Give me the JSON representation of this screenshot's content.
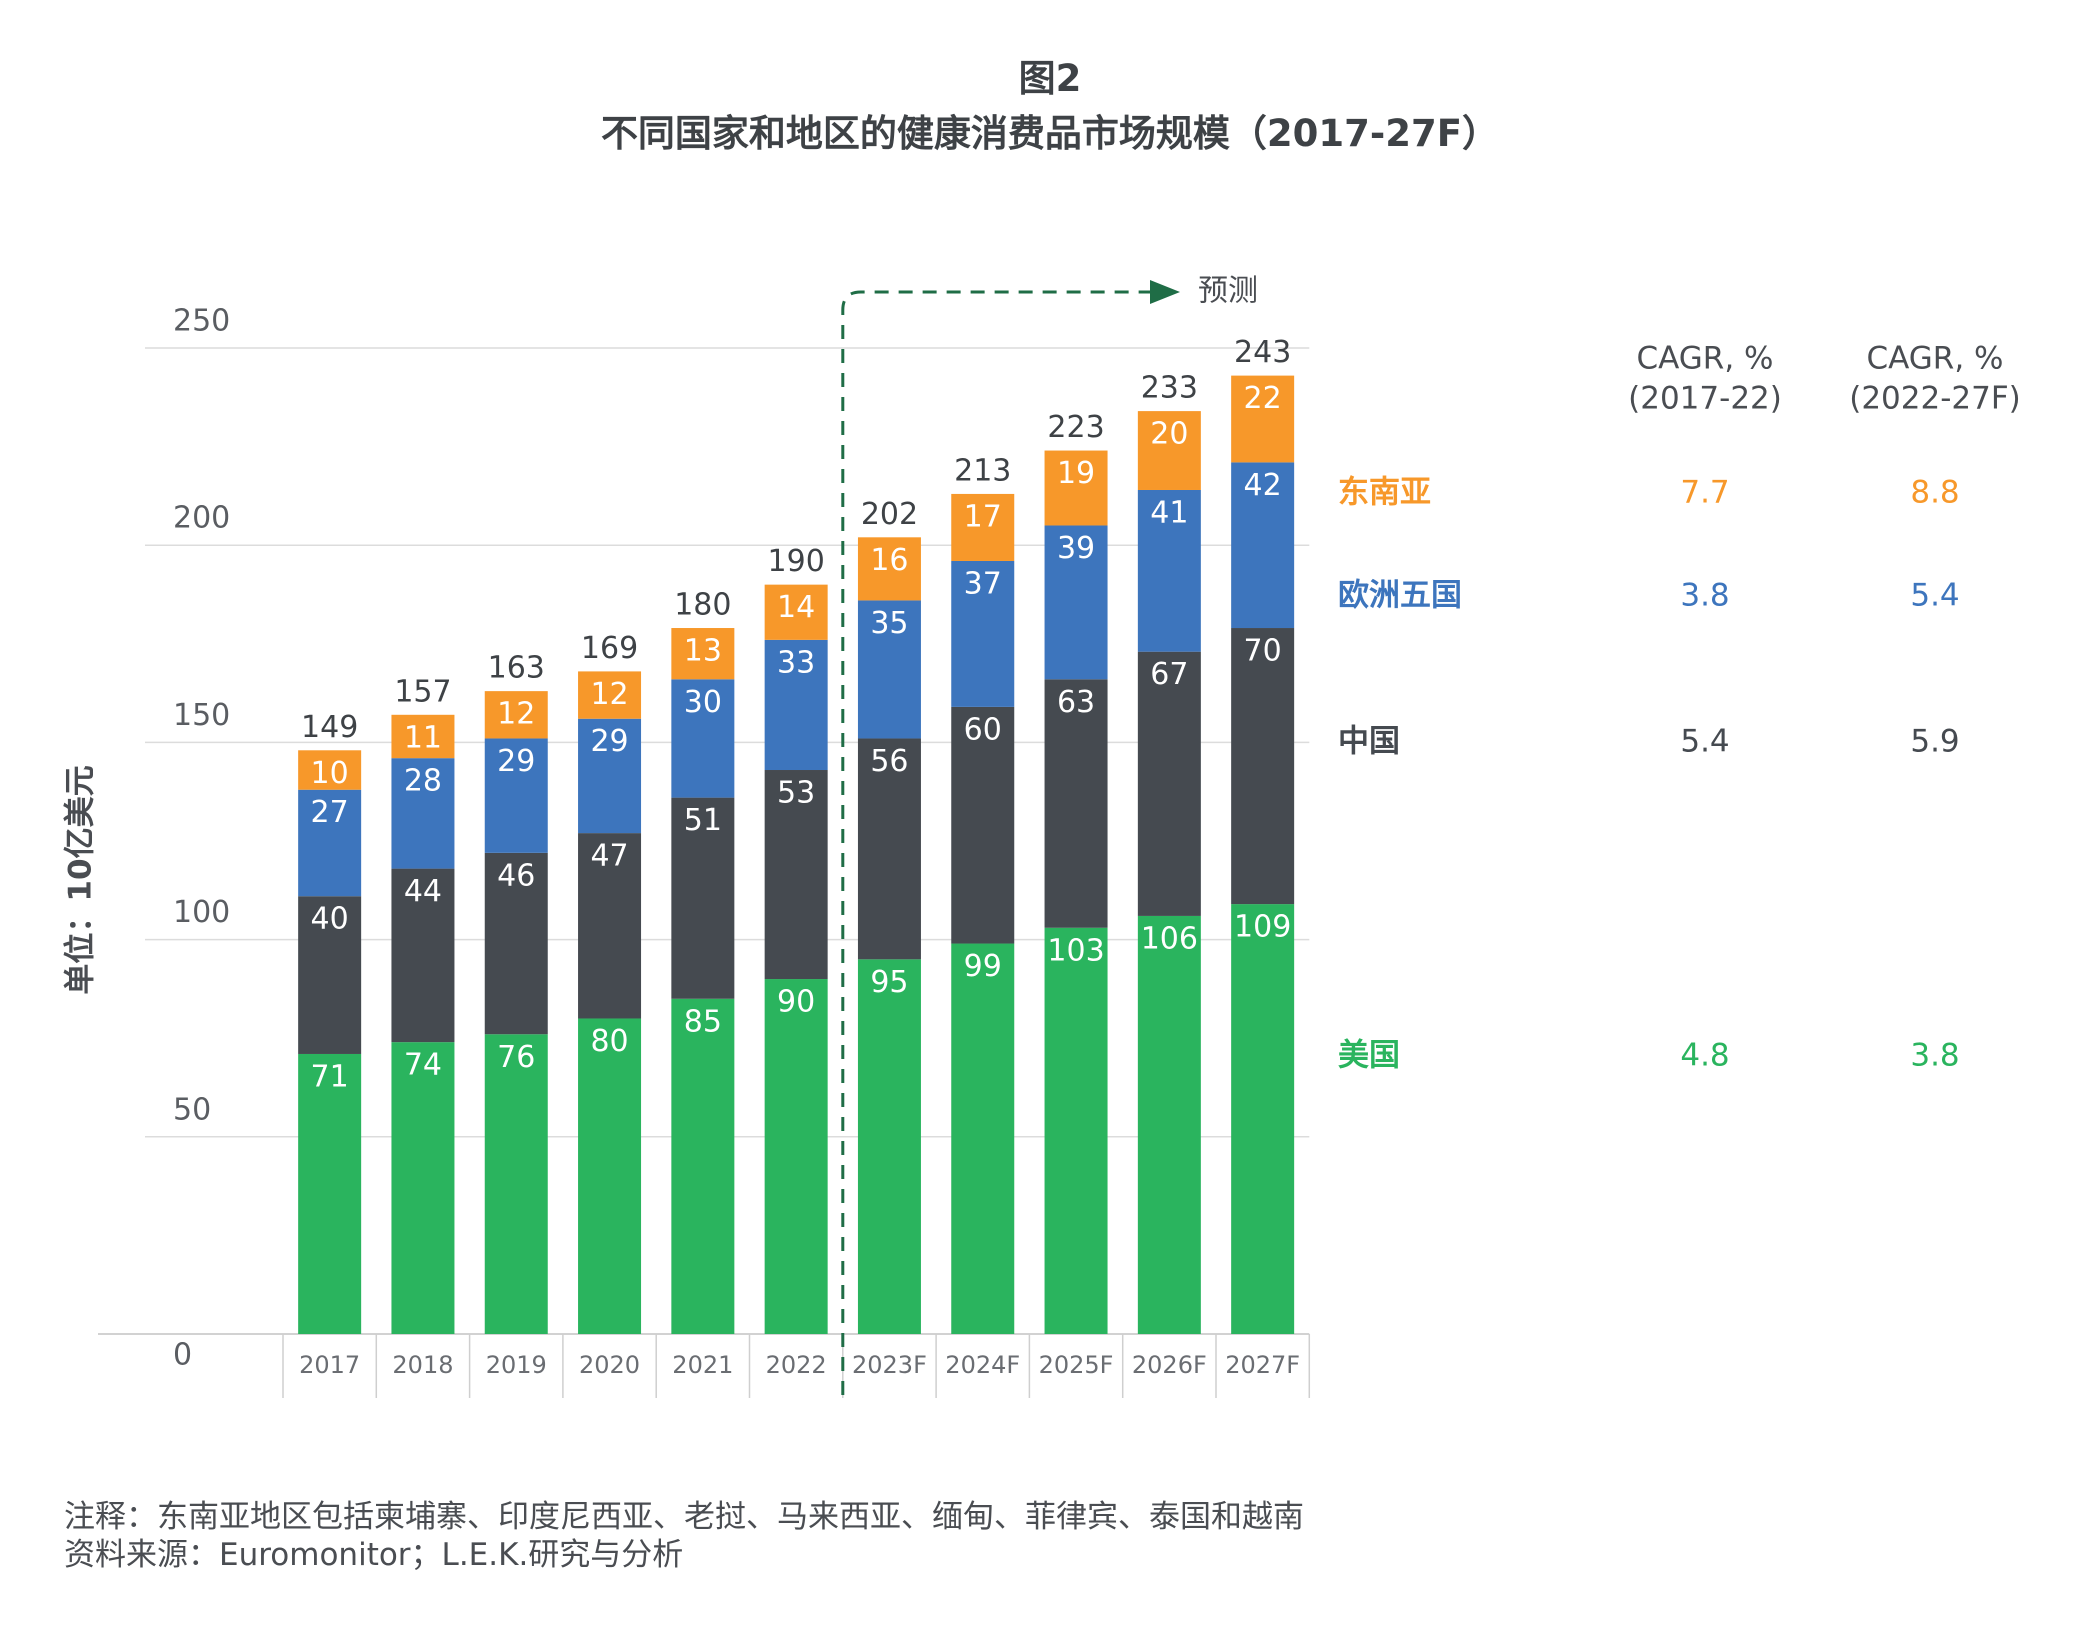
{
  "header": {
    "figure_label": "图2",
    "title": "不同国家和地区的健康消费品市场规模（2017-27F）"
  },
  "forecast_label": "预测",
  "cagr_headers": [
    "CAGR, %\n(2017-22)",
    "CAGR, %\n(2022-27F)"
  ],
  "notes": {
    "note": "注释：东南亚地区包括柬埔寨、印度尼西亚、老挝、马来西亚、缅甸、菲律宾、泰国和越南",
    "source": "资料来源：Euromonitor；L.E.K.研究与分析"
  },
  "colors": {
    "美国": "#2ab45e",
    "中国": "#454a50",
    "欧洲五国": "#3d75bd",
    "东南亚": "#f7982a"
  },
  "chart_data": {
    "type": "bar",
    "stacked": true,
    "ylabel": "单位：10亿美元",
    "ylim": [
      0,
      250
    ],
    "yticks": [
      0,
      50,
      100,
      150,
      200,
      250
    ],
    "grid": true,
    "categories": [
      "2017",
      "2018",
      "2019",
      "2020",
      "2021",
      "2022",
      "2023F",
      "2024F",
      "2025F",
      "2026F",
      "2027F"
    ],
    "totals": [
      149,
      157,
      163,
      169,
      180,
      190,
      202,
      213,
      223,
      233,
      243
    ],
    "series": [
      {
        "name": "美国",
        "values": [
          71,
          74,
          76,
          80,
          85,
          90,
          95,
          99,
          103,
          106,
          109
        ],
        "cagr": [
          "4.8",
          "3.8"
        ]
      },
      {
        "name": "中国",
        "values": [
          40,
          44,
          46,
          47,
          51,
          53,
          56,
          60,
          63,
          67,
          70
        ],
        "cagr": [
          "5.4",
          "5.9"
        ]
      },
      {
        "name": "欧洲五国",
        "values": [
          27,
          28,
          29,
          29,
          30,
          33,
          35,
          37,
          39,
          41,
          42
        ],
        "cagr": [
          "3.8",
          "5.4"
        ]
      },
      {
        "name": "东南亚",
        "values": [
          10,
          11,
          12,
          12,
          13,
          14,
          16,
          17,
          19,
          20,
          22
        ],
        "cagr": [
          "7.7",
          "8.8"
        ]
      }
    ]
  }
}
